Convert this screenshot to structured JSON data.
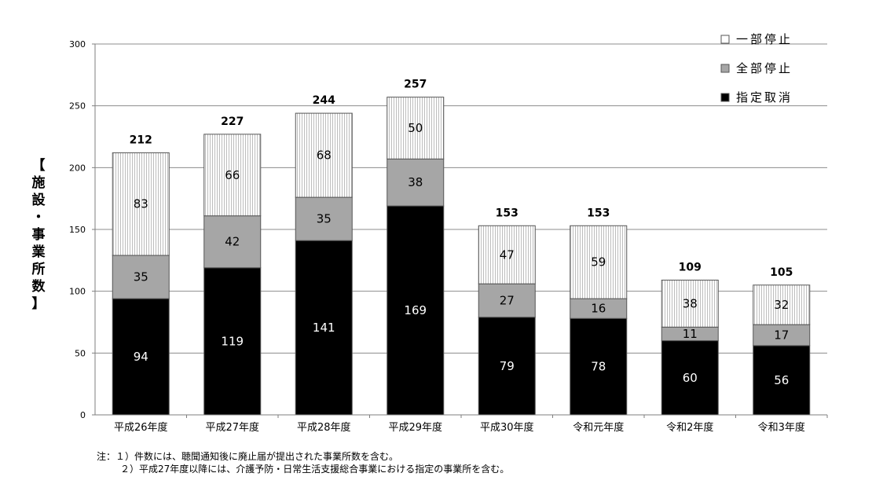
{
  "chart_data": {
    "type": "bar",
    "stacked": true,
    "categories": [
      "平成26年度",
      "平成27年度",
      "平成28年度",
      "平成29年度",
      "平成30年度",
      "令和元年度",
      "令和2年度",
      "令和3年度"
    ],
    "series": [
      {
        "name": "指定取消",
        "color": "#000000",
        "values": [
          94,
          119,
          141,
          169,
          79,
          78,
          60,
          56
        ]
      },
      {
        "name": "全部停止",
        "color": "#a6a6a6",
        "values": [
          35,
          42,
          35,
          38,
          27,
          16,
          11,
          17
        ]
      },
      {
        "name": "一部停止",
        "color": "#ffffff",
        "pattern": "vertical-stripes",
        "values": [
          83,
          66,
          68,
          50,
          47,
          59,
          38,
          32
        ]
      }
    ],
    "totals": [
      "212",
      "227",
      "244",
      "257",
      "153",
      "153",
      "109",
      "105"
    ],
    "legend_order": [
      "一部停止",
      "全部停止",
      "指定取消"
    ],
    "legend_position": "top-right",
    "ylabel": "【施設・事業所数】",
    "ylim": [
      0,
      300
    ],
    "yticks": [
      0,
      50,
      100,
      150,
      200,
      250,
      300
    ],
    "grid": true
  },
  "notes": [
    "注：１）件数には、聴聞通知後に廃止届が提出された事業所数を含む。",
    "２）平成27年度以降には、介護予防・日常生活支援総合事業における指定の事業所を含む。"
  ]
}
